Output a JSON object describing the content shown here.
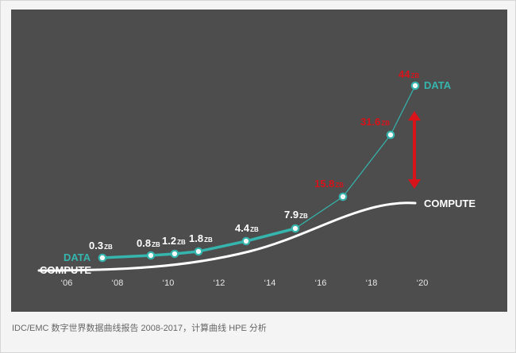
{
  "colors": {
    "panel_bg": "#4d4d4d",
    "data_line": "#35b5ad",
    "compute_line": "#ffffff",
    "forecast_label": "#d8131a",
    "gap_arrow": "#d8131a"
  },
  "caption": "IDC/EMC 数字世界数据曲线报告 2008-2017，计算曲线 HPE 分析",
  "chart_data": {
    "type": "line",
    "title": "",
    "xlabel": "",
    "ylabel": "",
    "x_ticks": [
      "‘06",
      "‘08",
      "‘10",
      "‘12",
      "‘14",
      "‘16",
      "‘18",
      "‘20"
    ],
    "xlim": [
      2006,
      2020
    ],
    "grid": false,
    "series": [
      {
        "name": "DATA",
        "unit": "ZB",
        "points": [
          {
            "x": 2006.0,
            "y": 0.3,
            "label": "0.3",
            "forecast": false
          },
          {
            "x": 2008.0,
            "y": 0.8,
            "label": "0.8",
            "forecast": false
          },
          {
            "x": 2009.0,
            "y": 1.2,
            "label": "1.2",
            "forecast": false
          },
          {
            "x": 2010.0,
            "y": 1.8,
            "label": "1.8",
            "forecast": false
          },
          {
            "x": 2012.0,
            "y": 4.4,
            "label": "4.4",
            "forecast": false
          },
          {
            "x": 2014.0,
            "y": 7.9,
            "label": "7.9",
            "forecast": false
          },
          {
            "x": 2016.0,
            "y": 15.8,
            "label": "15.8",
            "forecast": true
          },
          {
            "x": 2018.0,
            "y": 31.6,
            "label": "31.6",
            "forecast": true
          },
          {
            "x": 2019.0,
            "y": 44,
            "label": "44",
            "forecast": true
          }
        ]
      },
      {
        "name": "COMPUTE",
        "points": [
          {
            "x": 2006.0,
            "y": 0.15
          },
          {
            "x": 2008.0,
            "y": 0.4
          },
          {
            "x": 2010.0,
            "y": 1.0
          },
          {
            "x": 2012.0,
            "y": 2.5
          },
          {
            "x": 2014.0,
            "y": 5.0
          },
          {
            "x": 2016.0,
            "y": 8.5
          },
          {
            "x": 2018.0,
            "y": 11.0
          },
          {
            "x": 2019.0,
            "y": 11.8
          }
        ]
      }
    ],
    "annotations": [
      {
        "type": "double-arrow",
        "x": 2019.0,
        "from": 12.5,
        "to": 31.0,
        "meaning": "gap between data and compute"
      }
    ]
  }
}
